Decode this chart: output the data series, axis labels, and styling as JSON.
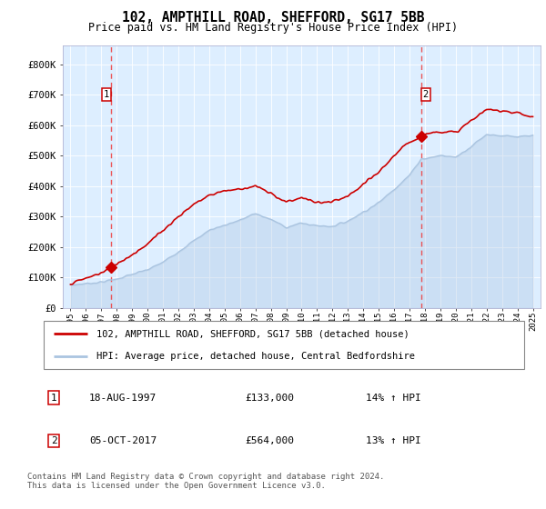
{
  "title": "102, AMPTHILL ROAD, SHEFFORD, SG17 5BB",
  "subtitle": "Price paid vs. HM Land Registry's House Price Index (HPI)",
  "ylim": [
    0,
    860000
  ],
  "xlim_start": 1994.5,
  "xlim_end": 2025.5,
  "sale1_x": 1997.63,
  "sale1_y": 133000,
  "sale2_x": 2017.76,
  "sale2_y": 564000,
  "plot_bg": "#ddeeff",
  "red_line_color": "#cc0000",
  "blue_line_color": "#aac4e0",
  "dashed_color": "#ee4444",
  "legend_line1": "102, AMPTHILL ROAD, SHEFFORD, SG17 5BB (detached house)",
  "legend_line2": "HPI: Average price, detached house, Central Bedfordshire",
  "sale_table": [
    {
      "num": "1",
      "date": "18-AUG-1997",
      "price": "£133,000",
      "pct": "14% ↑ HPI"
    },
    {
      "num": "2",
      "date": "05-OCT-2017",
      "price": "£564,000",
      "pct": "13% ↑ HPI"
    }
  ],
  "footer": "Contains HM Land Registry data © Crown copyright and database right 2024.\nThis data is licensed under the Open Government Licence v3.0."
}
